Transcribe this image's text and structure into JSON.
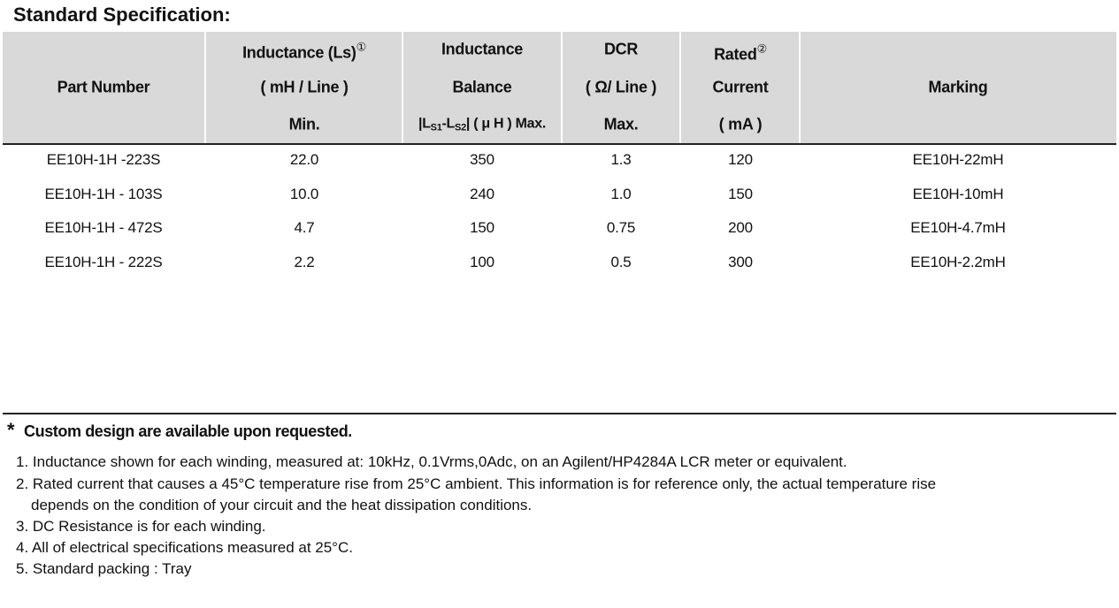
{
  "header": {
    "title": "Standard Specification:"
  },
  "table": {
    "header": [
      [
        "Part Number"
      ],
      [
        "Inductance (Ls)",
        "①",
        "( mH / Line )",
        "Min."
      ],
      [
        "Inductance",
        "Balance",
        "|L",
        "S1",
        "-L",
        "S2",
        "| ( μ H ) Max."
      ],
      [
        "DCR",
        "( Ω/ Line )",
        "Max."
      ],
      [
        "Rated",
        "②",
        "Current",
        "( mA )"
      ],
      [
        "Marking"
      ]
    ],
    "rows": [
      [
        "EE10H-1H -223S",
        "22.0",
        "350",
        "1.3",
        "120",
        "EE10H-22mH"
      ],
      [
        "EE10H-1H - 103S",
        "10.0",
        "240",
        "1.0",
        "150",
        "EE10H-10mH"
      ],
      [
        "EE10H-1H - 472S",
        "4.7",
        "150",
        "0.75",
        "200",
        "EE10H-4.7mH"
      ],
      [
        "EE10H-1H - 222S",
        "2.2",
        "100",
        "0.5",
        "300",
        "EE10H-2.2mH"
      ]
    ]
  },
  "footer": {
    "asterisk": "*",
    "custom_note": "Custom design are available upon requested.",
    "notes": [
      [
        "1. Inductance shown for each winding, measured at: 10kHz, 0.1Vrms,0Adc, on an Agilent/HP4284A LCR meter or equivalent."
      ],
      [
        "2. Rated current that causes a 45°C temperature rise from 25°C ambient. This information is for reference only,  the actual temperature rise",
        "depends on the condition of your circuit and the heat dissipation conditions."
      ],
      [
        "3. DC Resistance is for each winding."
      ],
      [
        "4. All of electrical specifications measured at 25°C."
      ],
      [
        "5. Standard packing : Tray"
      ]
    ]
  }
}
